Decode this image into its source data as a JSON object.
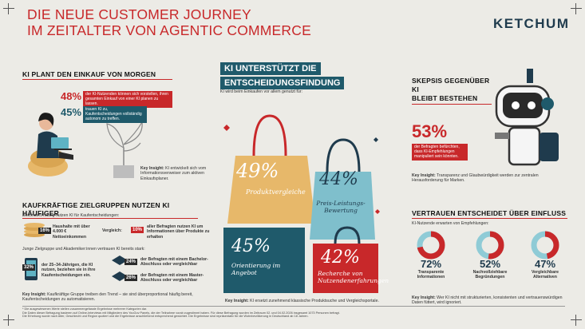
{
  "header": {
    "title_line1": "DIE NEUE CUSTOMER JOURNEY",
    "title_line2": "IM ZEITALTER VON AGENTIC COMMERCE",
    "logo": "KETCHUM"
  },
  "plan": {
    "heading": "KI PLANT DEN EINKAUF VON MORGEN",
    "stat1_value": "48%",
    "stat1_text": "der KI-Nutzenden können sich vorstellen, ihren gesamten Einkauf von einer KI planen zu lassen.",
    "stat2_value": "45%",
    "stat2_text": "trauen KI zu, Kaufentscheidungen vollständig autonom zu treffen.",
    "insight_label": "Key Insight:",
    "insight_text": "KI entwickelt sich vom Informationsverweiser zum aktiven Einkaufsplaner."
  },
  "groups": {
    "heading": "KAUFKRÄFTIGE ZIELGRUPPEN NUTZEN KI HÄUFIGER",
    "intro": "Besonders häufig nutzen KI für Kaufentscheidungen:",
    "households_pct": "16%",
    "households_text": "Haushalte mit über 4.000 € Nettoeinkommen",
    "compare_label": "Vergleich:",
    "compare_pct": "10%",
    "compare_text": "aller Befragten nutzen KI um Informationen über Produkte zu erhalten",
    "young_intro": "Junge Zielgruppe und Akademiker:innen vertrauen KI bereits stark:",
    "age_pct": "32%",
    "age_text": "der 25–34-Jährigen, die KI nutzen, beziehen sie in ihre Kaufentscheidungen ein.",
    "bachelor_pct": "24%",
    "bachelor_text": "der Befragten mit einem Bachelor-Abschluss oder vergleichbar",
    "master_pct": "26%",
    "master_text": "der Befragten mit einem Master-Abschluss oder vergleichbar",
    "insight_label": "Key Insight:",
    "insight_text": "Kaufkräftige Gruppe treiben den Trend – sie sind überproportional häufig bereit, Kaufentscheidungen zu automatisieren."
  },
  "decision": {
    "heading_line1": "KI UNTERSTÜTZT DIE",
    "heading_line2": "ENTSCHEIDUNGSFINDUNG",
    "subtitle": "KI wird beim Einkaufen vor allem genutzt für:",
    "bag1_pct": "49%",
    "bag1_label": "Produktvergleiche",
    "bag2_pct": "44%",
    "bag2_label": "Preis-Leistungs-Bewertung",
    "bag3_pct": "45%",
    "bag3_label": "Orientierung im Angebot",
    "bag4_pct": "42%",
    "bag4_label": "Recherche von Nutzendenerfahrungen",
    "insight_label": "Key Insight:",
    "insight_text": "KI ersetzt zunehmend klassische Produktsuche und Vergleichsportale."
  },
  "skepsis": {
    "heading_line1": "SKEPSIS GEGENÜBER KI",
    "heading_line2": "BLEIBT BESTEHEN",
    "stat_value": "53%",
    "stat_text": "der Befragten befürchten, dass KI-Empfehlungen manipuliert sein könnten.",
    "insight_label": "Key Insight:",
    "insight_text": "Transparenz und Glaubwürdigkeit werden zur zentralen Herausforderung für Marken."
  },
  "trust": {
    "heading": "VERTRAUEN ENTSCHEIDET ÜBER EINFLUSS",
    "intro": "KI-Nutzende erwarten von Empfehlungen:",
    "items": [
      {
        "pct": "72%",
        "label": "Transparente Informationen",
        "value": 72
      },
      {
        "pct": "52%",
        "label": "Nachvollziehbare Begründungen",
        "value": 52
      },
      {
        "pct": "47%",
        "label": "Vergleichbare Alternativen",
        "value": 47
      }
    ],
    "insight_label": "Key Insight:",
    "insight_text": "Wer KI nicht mit strukturierten, konsistenten und vertrauenswürdigen Daten füttert, wird ignoriert."
  },
  "footer": {
    "note1": "* Die ausgewiesenen Werte stellen zusammengefasste Ergebnisse mehrerer Kategorien dar.",
    "note2": "Die Daten dieser Befragung basieren auf Online-Interviews mit Mitgliedern des YouGov Panels, die der Teilnahme vorab zugestimmt haben. Für diese Befragung wurden im Zeitraum 02. und 04.02.2026 insgesamt 1073 Personen befragt.",
    "note3": "Die Erhebung wurde nach Alter, Geschlecht und Region quotiert und die Ergebnisse anschließend entsprechend gewichtet. Die Ergebnisse sind repräsentativ für die Wohnbevölkerung in Deutschland ab 18 Jahren."
  },
  "colors": {
    "red": "#c8282a",
    "teal": "#1f5a6b",
    "gold": "#e7b86a",
    "lightblue": "#5fb3c4"
  }
}
